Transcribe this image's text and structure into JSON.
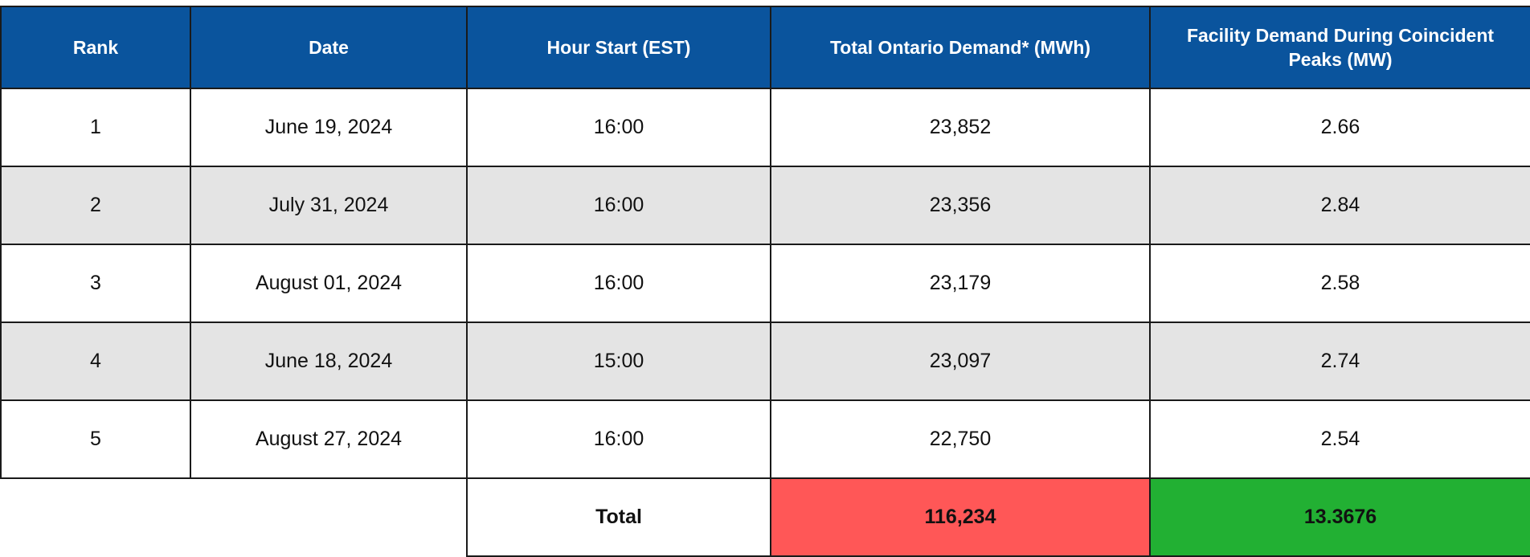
{
  "table": {
    "headers": [
      "Rank",
      "Date",
      "Hour Start (EST)",
      "Total Ontario Demand* (MWh)",
      "Facility Demand During Coincident Peaks (MW)"
    ],
    "rows": [
      {
        "rank": "1",
        "date": "June 19, 2024",
        "hour": "16:00",
        "demand": "23,852",
        "facility": "2.66"
      },
      {
        "rank": "2",
        "date": "July 31, 2024",
        "hour": "16:00",
        "demand": "23,356",
        "facility": "2.84"
      },
      {
        "rank": "3",
        "date": "August 01, 2024",
        "hour": "16:00",
        "demand": "23,179",
        "facility": "2.58"
      },
      {
        "rank": "4",
        "date": "June 18, 2024",
        "hour": "15:00",
        "demand": "23,097",
        "facility": "2.74"
      },
      {
        "rank": "5",
        "date": "August 27, 2024",
        "hour": "16:00",
        "demand": "22,750",
        "facility": "2.54"
      }
    ],
    "total": {
      "label": "Total",
      "demand": "116,234",
      "facility": "13.3676"
    }
  },
  "colors": {
    "header": "#0a549d",
    "shade": "#e4e4e4",
    "total_demand": "#ff5757",
    "total_facility": "#22b033"
  }
}
